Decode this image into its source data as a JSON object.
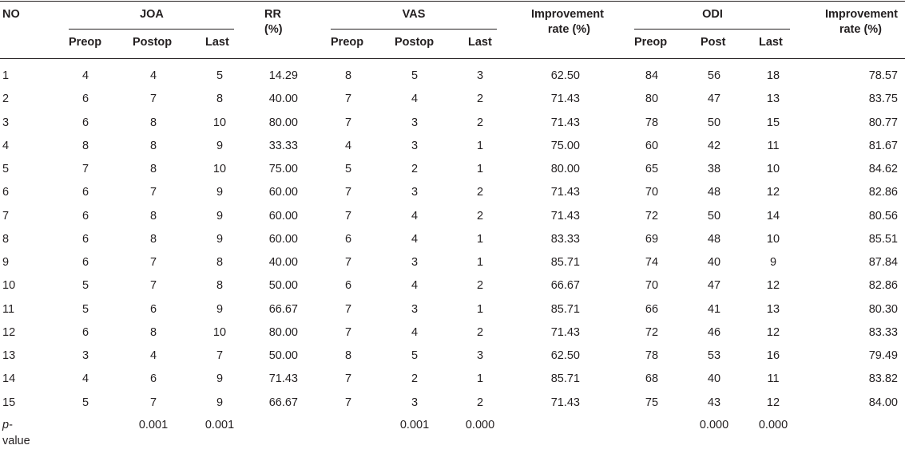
{
  "headers": {
    "no": "NO",
    "joa": "JOA",
    "rr": [
      "RR",
      "(%)"
    ],
    "vas": "VAS",
    "improvement_vas": [
      "Improvement",
      "rate (%)"
    ],
    "odi": "ODI",
    "improvement_odi": [
      "Improvement",
      "rate (%)"
    ],
    "joa_sub": [
      "Preop",
      "Postop",
      "Last"
    ],
    "vas_sub": [
      "Preop",
      "Postop",
      "Last"
    ],
    "odi_sub": [
      "Preop",
      "Post",
      "Last"
    ]
  },
  "rows": [
    [
      "1",
      "4",
      "4",
      "5",
      "14.29",
      "8",
      "5",
      "3",
      "62.50",
      "84",
      "56",
      "18",
      "78.57"
    ],
    [
      "2",
      "6",
      "7",
      "8",
      "40.00",
      "7",
      "4",
      "2",
      "71.43",
      "80",
      "47",
      "13",
      "83.75"
    ],
    [
      "3",
      "6",
      "8",
      "10",
      "80.00",
      "7",
      "3",
      "2",
      "71.43",
      "78",
      "50",
      "15",
      "80.77"
    ],
    [
      "4",
      "8",
      "8",
      "9",
      "33.33",
      "4",
      "3",
      "1",
      "75.00",
      "60",
      "42",
      "11",
      "81.67"
    ],
    [
      "5",
      "7",
      "8",
      "10",
      "75.00",
      "5",
      "2",
      "1",
      "80.00",
      "65",
      "38",
      "10",
      "84.62"
    ],
    [
      "6",
      "6",
      "7",
      "9",
      "60.00",
      "7",
      "3",
      "2",
      "71.43",
      "70",
      "48",
      "12",
      "82.86"
    ],
    [
      "7",
      "6",
      "8",
      "9",
      "60.00",
      "7",
      "4",
      "2",
      "71.43",
      "72",
      "50",
      "14",
      "80.56"
    ],
    [
      "8",
      "6",
      "8",
      "9",
      "60.00",
      "6",
      "4",
      "1",
      "83.33",
      "69",
      "48",
      "10",
      "85.51"
    ],
    [
      "9",
      "6",
      "7",
      "8",
      "40.00",
      "7",
      "3",
      "1",
      "85.71",
      "74",
      "40",
      "9",
      "87.84"
    ],
    [
      "10",
      "5",
      "7",
      "8",
      "50.00",
      "6",
      "4",
      "2",
      "66.67",
      "70",
      "47",
      "12",
      "82.86"
    ],
    [
      "11",
      "5",
      "6",
      "9",
      "66.67",
      "7",
      "3",
      "1",
      "85.71",
      "66",
      "41",
      "13",
      "80.30"
    ],
    [
      "12",
      "6",
      "8",
      "10",
      "80.00",
      "7",
      "4",
      "2",
      "71.43",
      "72",
      "46",
      "12",
      "83.33"
    ],
    [
      "13",
      "3",
      "4",
      "7",
      "50.00",
      "8",
      "5",
      "3",
      "62.50",
      "78",
      "53",
      "16",
      "79.49"
    ],
    [
      "14",
      "4",
      "6",
      "9",
      "71.43",
      "7",
      "2",
      "1",
      "85.71",
      "68",
      "40",
      "11",
      "83.82"
    ],
    [
      "15",
      "5",
      "7",
      "9",
      "66.67",
      "7",
      "3",
      "2",
      "71.43",
      "75",
      "43",
      "12",
      "84.00"
    ]
  ],
  "pvalue": {
    "label_p": "p",
    "label_dash": "-",
    "label_value": "value",
    "values": [
      "",
      "",
      "0.001",
      "0.001",
      "",
      "",
      "0.001",
      "0.000",
      "",
      "",
      "0.000",
      "0.000",
      ""
    ]
  }
}
